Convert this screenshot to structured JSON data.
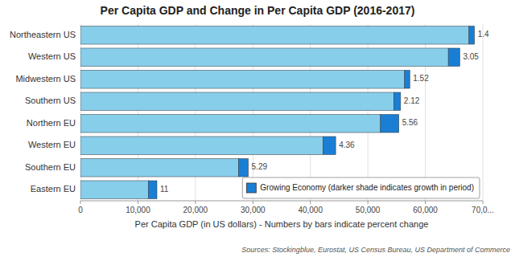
{
  "chart_data": {
    "type": "bar",
    "orientation": "horizontal",
    "stacked": true,
    "title": "Per Capita GDP and Change in Per Capita GDP (2016-2017)",
    "xlabel": "Per Capita GDP (in US dollars) - Numbers by bars indicate percent change",
    "source": "Sources: Stockingblue, Eurostat, US Census Bureau, US Department of Commerce",
    "categories": [
      "Eastern EU",
      "Southern EU",
      "Western EU",
      "Northern EU",
      "Southern US",
      "Midwestern US",
      "Western US",
      "Northeastern US"
    ],
    "series": [
      {
        "color": "#87CEEB",
        "values": [
          11800,
          27500,
          42200,
          52200,
          54500,
          56400,
          64000,
          67600
        ]
      },
      {
        "name": "Growing Economy (darker shade indicates growth in period)",
        "color": "#1A7FD4",
        "values": [
          1500,
          1700,
          2200,
          3200,
          1200,
          900,
          2000,
          950
        ]
      }
    ],
    "percent_change": [
      11,
      5.29,
      4.36,
      5.56,
      2.12,
      1.52,
      3.05,
      1.4
    ],
    "xlim": [
      0,
      70000
    ],
    "xticks": [
      0,
      {
        "value": 10000,
        "label": "10,000"
      },
      {
        "value": 20000,
        "label": "20,000"
      },
      {
        "value": 30000,
        "label": "30,000"
      },
      {
        "value": 40000,
        "label": "40,000"
      },
      {
        "value": 50000,
        "label": "50,000"
      },
      {
        "value": 60000,
        "label": "60,000"
      },
      {
        "value": 70000,
        "label": "70,0..."
      }
    ],
    "grid": true,
    "legend": "lower right"
  }
}
